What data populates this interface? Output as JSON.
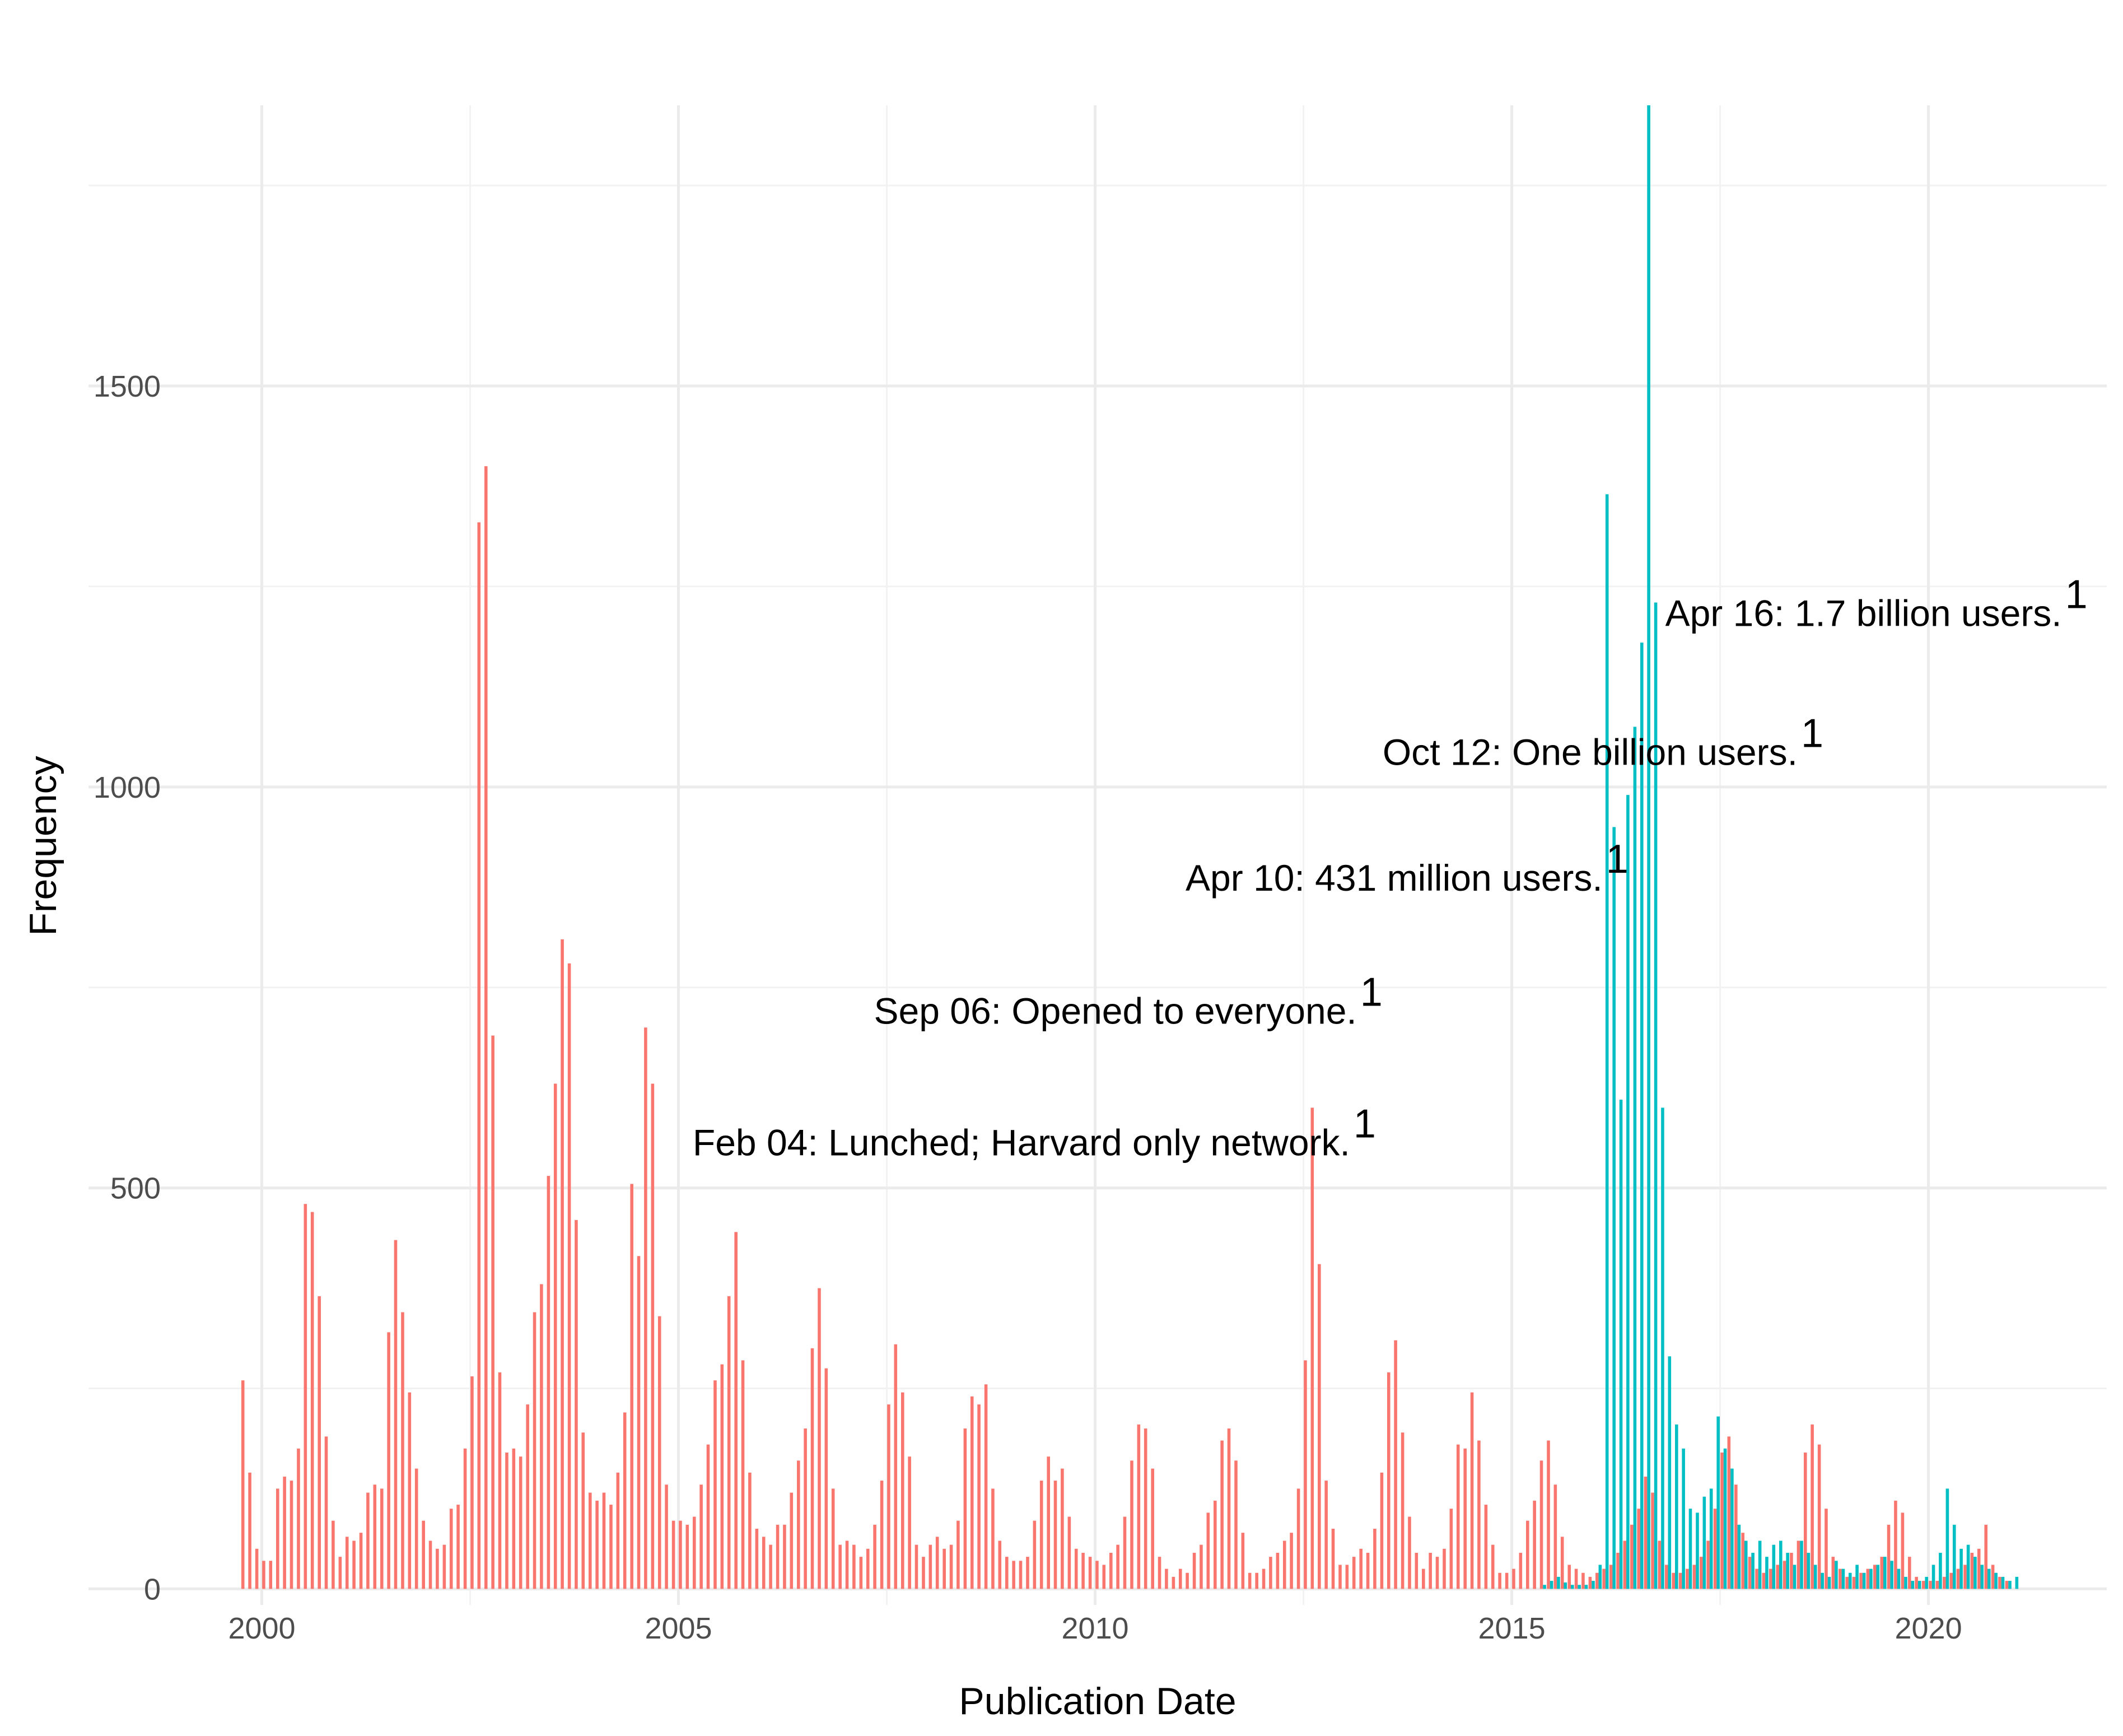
{
  "chart_data": {
    "type": "bar",
    "xlabel": "Publication Date",
    "ylabel": "Frequency",
    "xlim": [
      1997.92,
      2022.14
    ],
    "ylim": [
      -20,
      1850
    ],
    "xticks": [
      2000,
      2005,
      2010,
      2015,
      2020
    ],
    "yticks": [
      0,
      500,
      1000,
      1500
    ],
    "x_minor_ticks": [
      2002.5,
      2007.5,
      2012.5,
      2017.5
    ],
    "y_minor_ticks": [
      250,
      750,
      1250,
      1750
    ],
    "grid": true,
    "bin_width": 0.0833,
    "x": [
      1999.75,
      1999.833,
      1999.917,
      2000,
      2000.083,
      2000.167,
      2000.25,
      2000.333,
      2000.417,
      2000.5,
      2000.583,
      2000.667,
      2000.75,
      2000.833,
      2000.917,
      2001,
      2001.083,
      2001.167,
      2001.25,
      2001.333,
      2001.417,
      2001.5,
      2001.583,
      2001.667,
      2001.75,
      2001.833,
      2001.917,
      2002,
      2002.083,
      2002.167,
      2002.25,
      2002.333,
      2002.417,
      2002.5,
      2002.583,
      2002.667,
      2002.75,
      2002.833,
      2002.917,
      2003,
      2003.083,
      2003.167,
      2003.25,
      2003.333,
      2003.417,
      2003.5,
      2003.583,
      2003.667,
      2003.75,
      2003.833,
      2003.917,
      2004,
      2004.083,
      2004.167,
      2004.25,
      2004.333,
      2004.417,
      2004.5,
      2004.583,
      2004.667,
      2004.75,
      2004.833,
      2004.917,
      2005,
      2005.083,
      2005.167,
      2005.25,
      2005.333,
      2005.417,
      2005.5,
      2005.583,
      2005.667,
      2005.75,
      2005.833,
      2005.917,
      2006,
      2006.083,
      2006.167,
      2006.25,
      2006.333,
      2006.417,
      2006.5,
      2006.583,
      2006.667,
      2006.75,
      2006.833,
      2006.917,
      2007,
      2007.083,
      2007.167,
      2007.25,
      2007.333,
      2007.417,
      2007.5,
      2007.583,
      2007.667,
      2007.75,
      2007.833,
      2007.917,
      2008,
      2008.083,
      2008.167,
      2008.25,
      2008.333,
      2008.417,
      2008.5,
      2008.583,
      2008.667,
      2008.75,
      2008.833,
      2008.917,
      2009,
      2009.083,
      2009.167,
      2009.25,
      2009.333,
      2009.417,
      2009.5,
      2009.583,
      2009.667,
      2009.75,
      2009.833,
      2009.917,
      2010,
      2010.083,
      2010.167,
      2010.25,
      2010.333,
      2010.417,
      2010.5,
      2010.583,
      2010.667,
      2010.75,
      2010.833,
      2010.917,
      2011,
      2011.083,
      2011.167,
      2011.25,
      2011.333,
      2011.417,
      2011.5,
      2011.583,
      2011.667,
      2011.75,
      2011.833,
      2011.917,
      2012,
      2012.083,
      2012.167,
      2012.25,
      2012.333,
      2012.417,
      2012.5,
      2012.583,
      2012.667,
      2012.75,
      2012.833,
      2012.917,
      2013,
      2013.083,
      2013.167,
      2013.25,
      2013.333,
      2013.417,
      2013.5,
      2013.583,
      2013.667,
      2013.75,
      2013.833,
      2013.917,
      2014,
      2014.083,
      2014.167,
      2014.25,
      2014.333,
      2014.417,
      2014.5,
      2014.583,
      2014.667,
      2014.75,
      2014.833,
      2014.917,
      2015,
      2015.083,
      2015.167,
      2015.25,
      2015.333,
      2015.417,
      2015.5,
      2015.583,
      2015.667,
      2015.75,
      2015.833,
      2015.917,
      2016,
      2016.083,
      2016.167,
      2016.25,
      2016.333,
      2016.417,
      2016.5,
      2016.583,
      2016.667,
      2016.75,
      2016.833,
      2016.917,
      2017,
      2017.083,
      2017.167,
      2017.25,
      2017.333,
      2017.417,
      2017.5,
      2017.583,
      2017.667,
      2017.75,
      2017.833,
      2017.917,
      2018,
      2018.083,
      2018.167,
      2018.25,
      2018.333,
      2018.417,
      2018.5,
      2018.583,
      2018.667,
      2018.75,
      2018.833,
      2018.917,
      2019,
      2019.083,
      2019.167,
      2019.25,
      2019.333,
      2019.417,
      2019.5,
      2019.583,
      2019.667,
      2019.75,
      2019.833,
      2019.917,
      2020,
      2020.083,
      2020.167,
      2020.25,
      2020.333,
      2020.417,
      2020.5,
      2020.583,
      2020.667,
      2020.75,
      2020.833,
      2020.917,
      2021
    ],
    "series": [
      {
        "color": "#F8766D",
        "values": [
          260,
          145,
          50,
          35,
          35,
          125,
          140,
          135,
          175,
          480,
          470,
          365,
          190,
          85,
          40,
          65,
          60,
          70,
          120,
          130,
          125,
          320,
          435,
          345,
          245,
          150,
          85,
          60,
          50,
          55,
          100,
          105,
          175,
          265,
          1330,
          1400,
          690,
          270,
          170,
          175,
          165,
          230,
          345,
          380,
          515,
          630,
          810,
          780,
          460,
          195,
          120,
          110,
          120,
          105,
          145,
          220,
          505,
          415,
          700,
          630,
          340,
          130,
          85,
          85,
          80,
          90,
          130,
          180,
          260,
          280,
          365,
          445,
          285,
          145,
          75,
          65,
          55,
          80,
          80,
          120,
          160,
          200,
          300,
          375,
          275,
          125,
          55,
          60,
          55,
          40,
          50,
          80,
          135,
          230,
          305,
          245,
          165,
          55,
          40,
          55,
          65,
          50,
          55,
          85,
          200,
          240,
          230,
          255,
          125,
          60,
          40,
          35,
          35,
          40,
          85,
          135,
          165,
          135,
          150,
          90,
          50,
          45,
          40,
          35,
          30,
          45,
          55,
          90,
          160,
          205,
          200,
          150,
          40,
          25,
          15,
          25,
          20,
          45,
          55,
          95,
          110,
          185,
          200,
          160,
          70,
          20,
          20,
          25,
          40,
          45,
          60,
          70,
          125,
          285,
          600,
          405,
          135,
          75,
          30,
          30,
          40,
          50,
          45,
          75,
          145,
          270,
          310,
          195,
          90,
          45,
          25,
          45,
          40,
          50,
          100,
          180,
          175,
          245,
          185,
          105,
          55,
          20,
          20,
          25,
          45,
          85,
          110,
          160,
          185,
          130,
          65,
          30,
          25,
          20,
          15,
          20,
          25,
          30,
          45,
          60,
          80,
          100,
          140,
          120,
          60,
          30,
          20,
          20,
          25,
          30,
          40,
          60,
          100,
          170,
          190,
          130,
          70,
          40,
          25,
          20,
          25,
          30,
          35,
          45,
          60,
          170,
          205,
          180,
          100,
          40,
          25,
          15,
          15,
          20,
          25,
          30,
          40,
          80,
          110,
          95,
          40,
          15,
          10,
          10,
          10,
          15,
          20,
          25,
          30,
          45,
          50,
          80,
          30,
          15,
          10,
          null
        ]
      },
      {
        "color": "#00BFC4",
        "values": [
          null,
          null,
          null,
          null,
          null,
          null,
          null,
          null,
          null,
          null,
          null,
          null,
          null,
          null,
          null,
          null,
          null,
          null,
          null,
          null,
          null,
          null,
          null,
          null,
          null,
          null,
          null,
          null,
          null,
          null,
          null,
          null,
          null,
          null,
          null,
          null,
          null,
          null,
          null,
          null,
          null,
          null,
          null,
          null,
          null,
          null,
          null,
          null,
          null,
          null,
          null,
          null,
          null,
          null,
          null,
          null,
          null,
          null,
          null,
          null,
          null,
          null,
          null,
          null,
          null,
          null,
          null,
          null,
          null,
          null,
          null,
          null,
          null,
          null,
          null,
          null,
          null,
          null,
          null,
          null,
          null,
          null,
          null,
          null,
          null,
          null,
          null,
          null,
          null,
          null,
          null,
          null,
          null,
          null,
          null,
          null,
          null,
          null,
          null,
          null,
          null,
          null,
          null,
          null,
          null,
          null,
          null,
          null,
          null,
          null,
          null,
          null,
          null,
          null,
          null,
          null,
          null,
          null,
          null,
          null,
          null,
          null,
          null,
          null,
          null,
          null,
          null,
          null,
          null,
          null,
          null,
          null,
          null,
          null,
          null,
          null,
          null,
          null,
          null,
          null,
          null,
          null,
          null,
          null,
          null,
          null,
          null,
          null,
          null,
          null,
          null,
          null,
          null,
          null,
          null,
          null,
          null,
          null,
          null,
          null,
          null,
          null,
          null,
          null,
          null,
          null,
          null,
          null,
          null,
          null,
          null,
          null,
          null,
          null,
          null,
          null,
          null,
          null,
          null,
          null,
          null,
          null,
          null,
          0,
          0,
          0,
          0,
          5,
          10,
          15,
          8,
          5,
          5,
          5,
          10,
          30,
          1365,
          950,
          610,
          990,
          1075,
          1180,
          1850,
          1230,
          600,
          290,
          205,
          175,
          100,
          95,
          115,
          125,
          215,
          175,
          150,
          80,
          60,
          45,
          60,
          40,
          55,
          60,
          45,
          30,
          60,
          45,
          30,
          20,
          15,
          35,
          25,
          20,
          30,
          20,
          25,
          30,
          40,
          35,
          25,
          15,
          10,
          10,
          15,
          30,
          45,
          125,
          80,
          50,
          55,
          40,
          30,
          25,
          20,
          15,
          10,
          15
        ]
      }
    ],
    "annotations": [
      {
        "text": "Feb 04: Lunched; Harvard only network.",
        "sup": "1",
        "x": 2013.06,
        "y": 556
      },
      {
        "text": "Sep 06: Opened to everyone.",
        "sup": "1",
        "x": 2013.14,
        "y": 720
      },
      {
        "text": "Apr 10: 431 million users.",
        "sup": "1",
        "x": 2016.09,
        "y": 886
      },
      {
        "text": "Oct 12: One billion users.",
        "sup": "1",
        "x": 2018.43,
        "y": 1043
      },
      {
        "text": "Apr 16: 1.7 billion users.",
        "sup": "1",
        "x": 2021.6,
        "y": 1216
      }
    ]
  }
}
